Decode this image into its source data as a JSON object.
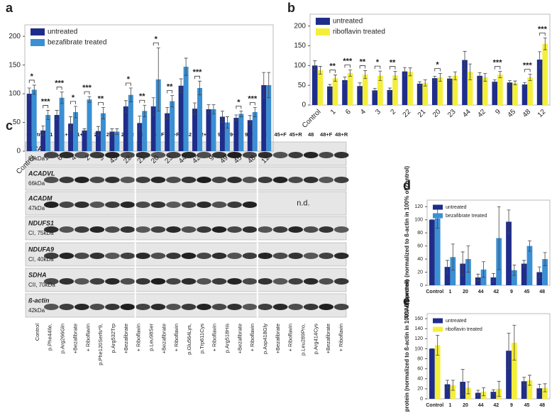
{
  "chart_data": [
    {
      "type": "bar",
      "panel": "a",
      "legend": "upper left",
      "categories": [
        "Control",
        "1",
        "6",
        "4",
        "2",
        "3",
        "43",
        "22",
        "21",
        "20",
        "23",
        "44",
        "42",
        "9",
        "49",
        "45",
        "48",
        "12"
      ],
      "series": [
        {
          "name": "untreated",
          "color": "#1f2d8a",
          "values": [
            100,
            36,
            63,
            48,
            36,
            35,
            34,
            78,
            49,
            78,
            66,
            114,
            74,
            73,
            60,
            58,
            54,
            115
          ],
          "errors": [
            10,
            8,
            8,
            12,
            3,
            8,
            5,
            10,
            12,
            15,
            10,
            12,
            10,
            8,
            10,
            5,
            8,
            22
          ]
        },
        {
          "name": "bezafibrate treated",
          "color": "#3b8fd3",
          "values": [
            107,
            63,
            93,
            68,
            90,
            66,
            34,
            98,
            70,
            125,
            87,
            147,
            110,
            73,
            50,
            65,
            68,
            115
          ],
          "errors": [
            8,
            8,
            10,
            10,
            5,
            10,
            5,
            12,
            10,
            55,
            10,
            15,
            12,
            8,
            10,
            5,
            8,
            22
          ]
        }
      ],
      "annotations": [
        "*",
        "***",
        "***",
        "*",
        "***",
        "**",
        null,
        "*",
        "**",
        "*",
        "**",
        null,
        "***",
        null,
        null,
        "*",
        "***",
        null
      ],
      "ylim": [
        0,
        220
      ],
      "yticks": [
        0,
        50,
        100,
        150,
        200
      ]
    },
    {
      "type": "bar",
      "panel": "b",
      "legend": "upper left",
      "categories": [
        "Control",
        "1",
        "6",
        "4",
        "3",
        "2",
        "22",
        "21",
        "20",
        "23",
        "44",
        "42",
        "9",
        "45",
        "48",
        "12"
      ],
      "series": [
        {
          "name": "untreated",
          "color": "#1f2d8a",
          "values": [
            100,
            47,
            63,
            48,
            37,
            38,
            85,
            54,
            68,
            67,
            114,
            74,
            59,
            57,
            52,
            115
          ],
          "errors": [
            12,
            5,
            8,
            8,
            5,
            5,
            10,
            5,
            5,
            5,
            22,
            8,
            5,
            5,
            5,
            20
          ]
        },
        {
          "name": "riboflavin treated",
          "color": "#f4ef3a",
          "values": [
            88,
            68,
            81,
            77,
            74,
            75,
            84,
            56,
            70,
            74,
            84,
            70,
            77,
            56,
            70,
            155
          ],
          "errors": [
            10,
            8,
            8,
            10,
            12,
            10,
            10,
            8,
            10,
            10,
            20,
            10,
            8,
            5,
            8,
            15
          ]
        }
      ],
      "annotations": [
        null,
        "**",
        "***",
        "**",
        "*",
        "**",
        null,
        null,
        "*",
        null,
        null,
        null,
        "***",
        null,
        "***",
        "***"
      ],
      "ylim": [
        0,
        230
      ],
      "yticks": [
        0,
        50,
        100,
        150,
        200
      ]
    },
    {
      "type": "bar",
      "panel": "d",
      "legend": "upper left",
      "y_label": "ACAD9 protein (normalized to ß-actin in 100% of control)",
      "categories": [
        "Control",
        "1",
        "20",
        "44",
        "42",
        "9",
        "45",
        "48"
      ],
      "series": [
        {
          "name": "untreated",
          "color": "#1f2d8a",
          "values": [
            100,
            28,
            33,
            12,
            12,
            97,
            33,
            20
          ],
          "errors": [
            0,
            10,
            18,
            5,
            6,
            18,
            5,
            8
          ]
        },
        {
          "name": "bezafibrate treated",
          "color": "#3b8fd3",
          "values": [
            102,
            43,
            40,
            24,
            72,
            23,
            60,
            40
          ],
          "errors": [
            15,
            20,
            20,
            12,
            48,
            8,
            8,
            10
          ]
        }
      ],
      "ylim": [
        0,
        130
      ],
      "yticks": [
        0,
        20,
        40,
        60,
        80,
        100,
        120
      ]
    },
    {
      "type": "bar",
      "panel": "e",
      "legend": "upper left",
      "y_label": "ACAD9 protein (normalized to ß-actin in 100% of control)",
      "categories": [
        "Control",
        "1",
        "20",
        "44",
        "42",
        "9",
        "45",
        "48"
      ],
      "series": [
        {
          "name": "untreated",
          "color": "#1f2d8a",
          "values": [
            100,
            29,
            34,
            12,
            14,
            96,
            35,
            21
          ],
          "errors": [
            0,
            8,
            25,
            5,
            4,
            35,
            8,
            8
          ]
        },
        {
          "name": "riboflavin treated",
          "color": "#f4ef3a",
          "values": [
            107,
            27,
            22,
            14,
            20,
            112,
            37,
            22
          ],
          "errors": [
            20,
            10,
            12,
            8,
            15,
            35,
            10,
            8
          ]
        }
      ],
      "ylim": [
        0,
        170
      ],
      "yticks": [
        0,
        20,
        40,
        60,
        80,
        100,
        120,
        140,
        160
      ]
    }
  ],
  "blot": {
    "panel": "c",
    "lanes": [
      "Control",
      "1",
      "1+F",
      "1+R",
      "20",
      "20+F",
      "20+R",
      "44",
      "44+F",
      "44+R",
      "42",
      "42+R",
      "9",
      "9+F",
      "9+R",
      "45",
      "45+F",
      "45+R",
      "48",
      "48+F",
      "48+R"
    ],
    "rows": [
      {
        "name": "ACAD9",
        "size": "69kDa"
      },
      {
        "name": "ACADVL",
        "size": "66kDa"
      },
      {
        "name": "ACADM",
        "size": "47kDa"
      },
      {
        "name": "NDUFS1",
        "size": "CI, 75kDa"
      },
      {
        "name": "NDUFA9",
        "size": "CI, 40kDa"
      },
      {
        "name": "SDHA",
        "size": "CII, 70kDa"
      },
      {
        "name": "ß-actin",
        "size": "42kDa"
      }
    ],
    "not_detected": "n.d.",
    "bottom_labels": [
      "Control",
      "p.Phe44Ile,",
      "p.Arg266Gln",
      "+Bezafibrate",
      "+ Riboflavin",
      "p.Phe120Serfs*9,",
      "p.Arg532Trp",
      "+Bezafibrate",
      "+ Riboflavin",
      "p.Leu98Ser",
      "+Bezafibrate",
      "+ Riboflavin",
      "p.Glu564Lys,",
      "p.Trp611Cys",
      "+ Riboflavin",
      "p.Arg518His",
      "+Bezafibrate",
      "+ Riboflavin",
      "p.Asp418Gly",
      "+Bezafibrate",
      "+ Riboflavin",
      "p.Leu289Pro,",
      "p.Arg414Cys",
      "+Bezafibrate",
      "+ Riboflavin"
    ]
  }
}
